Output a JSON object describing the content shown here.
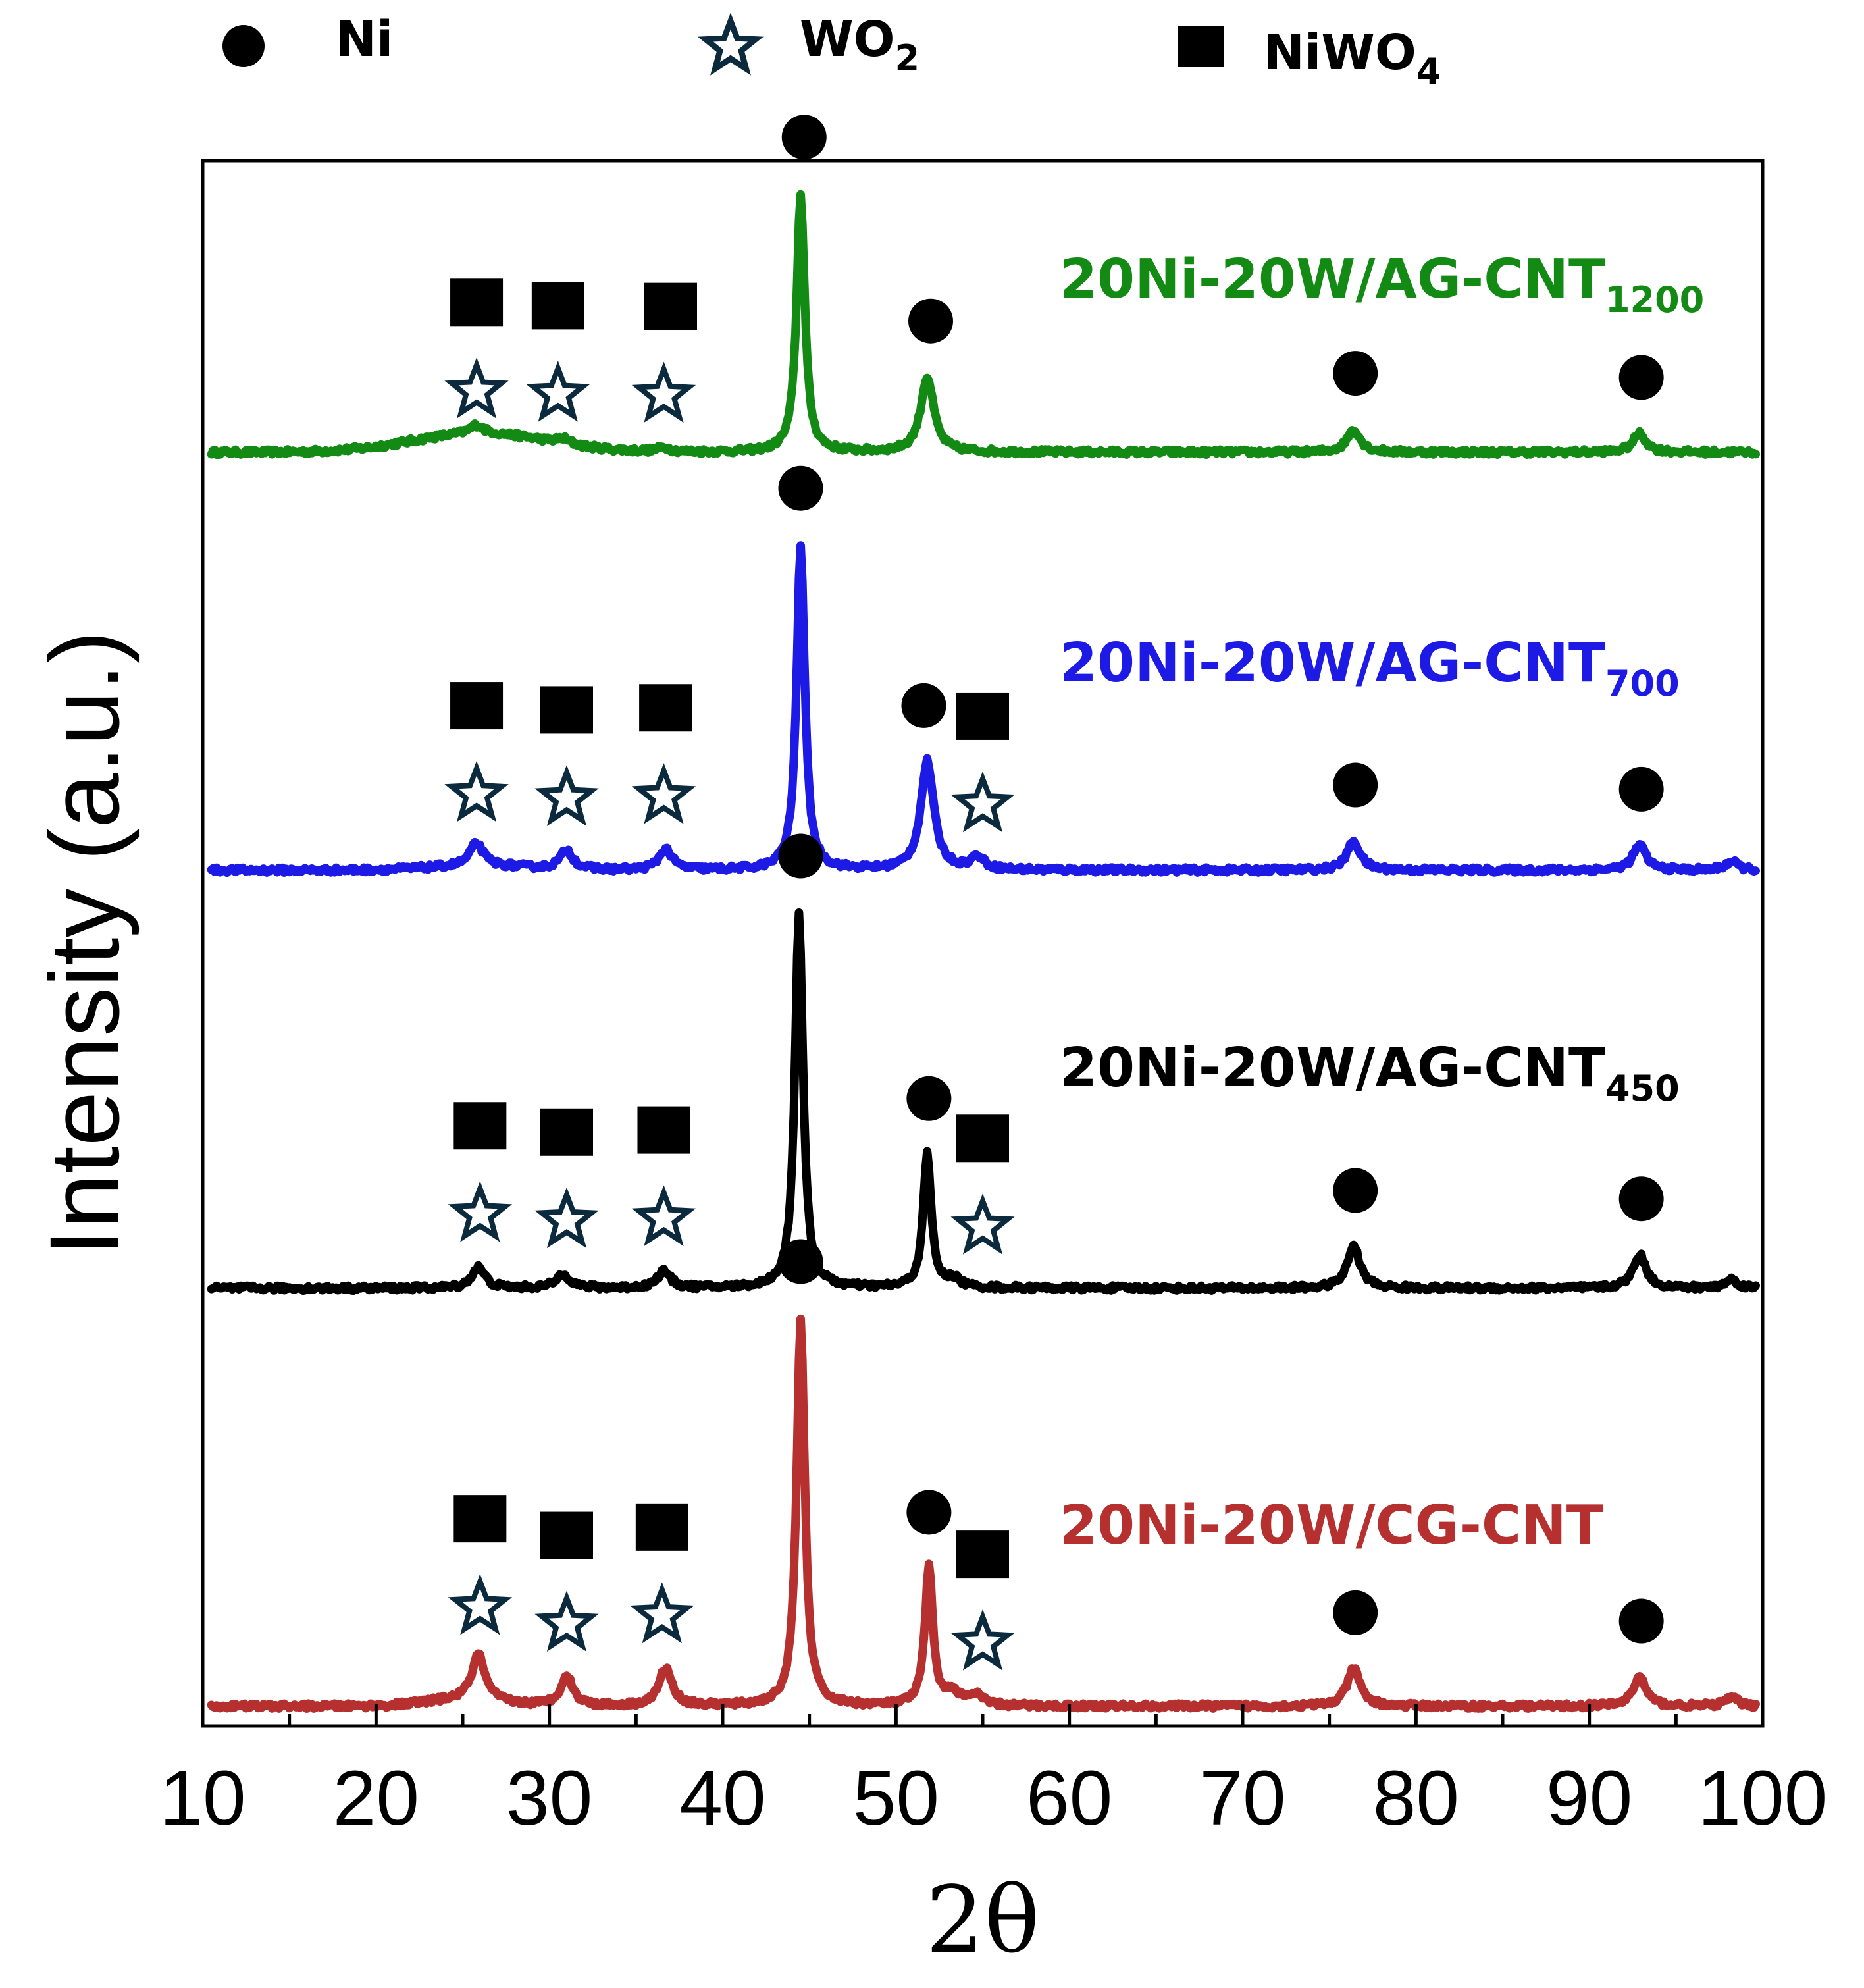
{
  "chart_data": {
    "type": "line",
    "title": "",
    "xlabel": "2θ",
    "ylabel": "Intensity (a.u.)",
    "xlim": [
      10,
      100
    ],
    "x_ticks": [
      "10",
      "20",
      "30",
      "40",
      "50",
      "60",
      "70",
      "80",
      "90",
      "100"
    ],
    "y_ticks": "none",
    "legend": {
      "placement": "top",
      "entries": [
        {
          "symbol": "circle",
          "name": "Ni",
          "label_main": "Ni",
          "label_sub": ""
        },
        {
          "symbol": "star",
          "name": "WO2",
          "label_main": "WO",
          "label_sub": "2"
        },
        {
          "symbol": "square",
          "name": "NiWO4",
          "label_main": "NiWO",
          "label_sub": "4"
        }
      ]
    },
    "series": [
      {
        "name": "20Ni-20W/AG-CNT1200",
        "label_main": "20Ni-20W/AG-CNT",
        "label_sub": "1200",
        "color": "#138a14",
        "baseline": 3.0,
        "broad_hump": {
          "center": 26,
          "width": 5.5,
          "height": 0.045
        },
        "peaks": [
          {
            "pos": 25.8,
            "h": 0.02
          },
          {
            "pos": 30.8,
            "h": 0.012
          },
          {
            "pos": 36.6,
            "h": 0.01
          },
          {
            "pos": 44.5,
            "h": 0.62
          },
          {
            "pos": 51.8,
            "h": 0.18
          },
          {
            "pos": 76.4,
            "h": 0.055
          },
          {
            "pos": 92.9,
            "h": 0.045
          }
        ],
        "markers": [
          {
            "type": "square",
            "x": 25.8
          },
          {
            "type": "star",
            "x": 25.8
          },
          {
            "type": "square",
            "x": 30.5
          },
          {
            "type": "star",
            "x": 30.5
          },
          {
            "type": "square",
            "x": 37.0
          },
          {
            "type": "star",
            "x": 36.6
          },
          {
            "type": "circle",
            "x": 44.7
          },
          {
            "type": "circle",
            "x": 52.0
          },
          {
            "type": "circle",
            "x": 76.5
          },
          {
            "type": "circle",
            "x": 93.0
          }
        ]
      },
      {
        "name": "20Ni-20W/AG-CNT700",
        "label_main": "20Ni-20W/AG-CNT",
        "label_sub": "700",
        "color": "#1d1ae6",
        "baseline": 2.0,
        "broad_hump": {
          "center": 26,
          "width": 4,
          "height": 0.01
        },
        "peaks": [
          {
            "pos": 25.8,
            "h": 0.055
          },
          {
            "pos": 31.0,
            "h": 0.045
          },
          {
            "pos": 36.7,
            "h": 0.05
          },
          {
            "pos": 44.5,
            "h": 0.78
          },
          {
            "pos": 51.8,
            "h": 0.26
          },
          {
            "pos": 54.7,
            "h": 0.03
          },
          {
            "pos": 76.4,
            "h": 0.07
          },
          {
            "pos": 92.9,
            "h": 0.06
          },
          {
            "pos": 98.2,
            "h": 0.02
          }
        ],
        "markers": [
          {
            "type": "square",
            "x": 25.8
          },
          {
            "type": "star",
            "x": 25.8
          },
          {
            "type": "square",
            "x": 31.0
          },
          {
            "type": "star",
            "x": 31.0
          },
          {
            "type": "square",
            "x": 36.7
          },
          {
            "type": "star",
            "x": 36.6
          },
          {
            "type": "circle",
            "x": 44.5
          },
          {
            "type": "circle",
            "x": 51.6
          },
          {
            "type": "square",
            "x": 55.0
          },
          {
            "type": "star",
            "x": 55.0
          },
          {
            "type": "circle",
            "x": 76.5
          },
          {
            "type": "circle",
            "x": 93.0
          }
        ]
      },
      {
        "name": "20Ni-20W/AG-CNT450",
        "label_main": "20Ni-20W/AG-CNT",
        "label_sub": "450",
        "color": "#000000",
        "baseline": 1.0,
        "broad_hump": {
          "center": 26,
          "width": 4,
          "height": 0.0
        },
        "peaks": [
          {
            "pos": 25.9,
            "h": 0.05
          },
          {
            "pos": 30.8,
            "h": 0.035
          },
          {
            "pos": 36.6,
            "h": 0.04
          },
          {
            "pos": 44.4,
            "h": 0.9
          },
          {
            "pos": 51.8,
            "h": 0.32
          },
          {
            "pos": 53.3,
            "h": 0.02
          },
          {
            "pos": 76.4,
            "h": 0.1
          },
          {
            "pos": 92.9,
            "h": 0.08
          },
          {
            "pos": 98.2,
            "h": 0.02
          }
        ],
        "markers": [
          {
            "type": "square",
            "x": 26.0
          },
          {
            "type": "star",
            "x": 26.0
          },
          {
            "type": "square",
            "x": 31.0
          },
          {
            "type": "star",
            "x": 31.0
          },
          {
            "type": "square",
            "x": 36.6
          },
          {
            "type": "star",
            "x": 36.6
          },
          {
            "type": "circle",
            "x": 44.5
          },
          {
            "type": "circle",
            "x": 51.9
          },
          {
            "type": "square",
            "x": 55.0
          },
          {
            "type": "star",
            "x": 55.0
          },
          {
            "type": "circle",
            "x": 76.5
          },
          {
            "type": "circle",
            "x": 93.0
          }
        ]
      },
      {
        "name": "20Ni-20W/CG-CNT",
        "label_main": "20Ni-20W/CG-CNT",
        "label_sub": "",
        "color": "#b5302f",
        "baseline": 0.0,
        "broad_hump": {
          "center": 25,
          "width": 3,
          "height": 0.015
        },
        "peaks": [
          {
            "pos": 25.9,
            "h": 0.11
          },
          {
            "pos": 31.0,
            "h": 0.07
          },
          {
            "pos": 36.7,
            "h": 0.09
          },
          {
            "pos": 44.5,
            "h": 0.93
          },
          {
            "pos": 51.9,
            "h": 0.33
          },
          {
            "pos": 53.3,
            "h": 0.03
          },
          {
            "pos": 54.6,
            "h": 0.025
          },
          {
            "pos": 76.4,
            "h": 0.09
          },
          {
            "pos": 92.9,
            "h": 0.07
          },
          {
            "pos": 98.2,
            "h": 0.02
          }
        ],
        "markers": [
          {
            "type": "square",
            "x": 26.0
          },
          {
            "type": "star",
            "x": 26.0
          },
          {
            "type": "square",
            "x": 31.0
          },
          {
            "type": "star",
            "x": 31.0
          },
          {
            "type": "square",
            "x": 36.5
          },
          {
            "type": "star",
            "x": 36.5
          },
          {
            "type": "circle",
            "x": 44.5
          },
          {
            "type": "circle",
            "x": 51.9
          },
          {
            "type": "square",
            "x": 55.0
          },
          {
            "type": "star",
            "x": 55.0
          },
          {
            "type": "circle",
            "x": 76.5
          },
          {
            "type": "circle",
            "x": 93.0
          }
        ]
      }
    ]
  }
}
